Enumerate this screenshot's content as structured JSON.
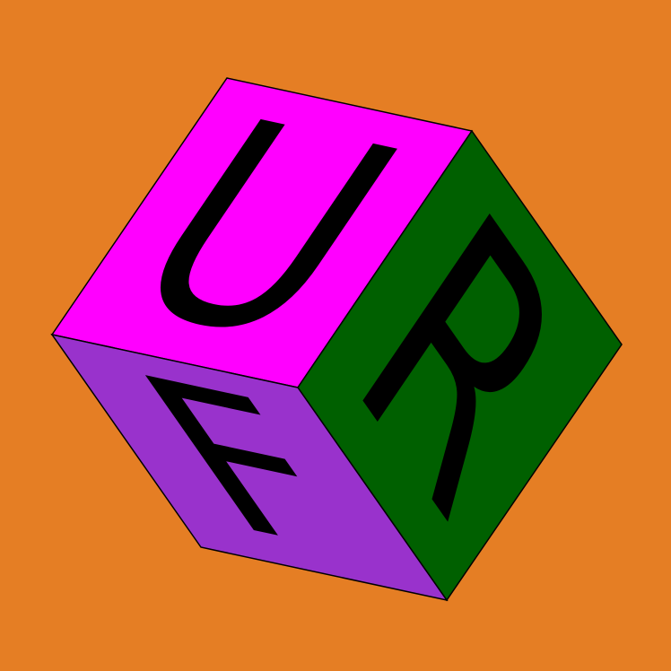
{
  "background_color": "#E57E24",
  "cube": {
    "edge_color": "#000000",
    "faces": {
      "up": {
        "letter": "U",
        "color": "#FF00FF"
      },
      "right": {
        "letter": "R",
        "color": "#006000"
      },
      "front": {
        "letter": "F",
        "color": "#9932CC"
      }
    }
  }
}
